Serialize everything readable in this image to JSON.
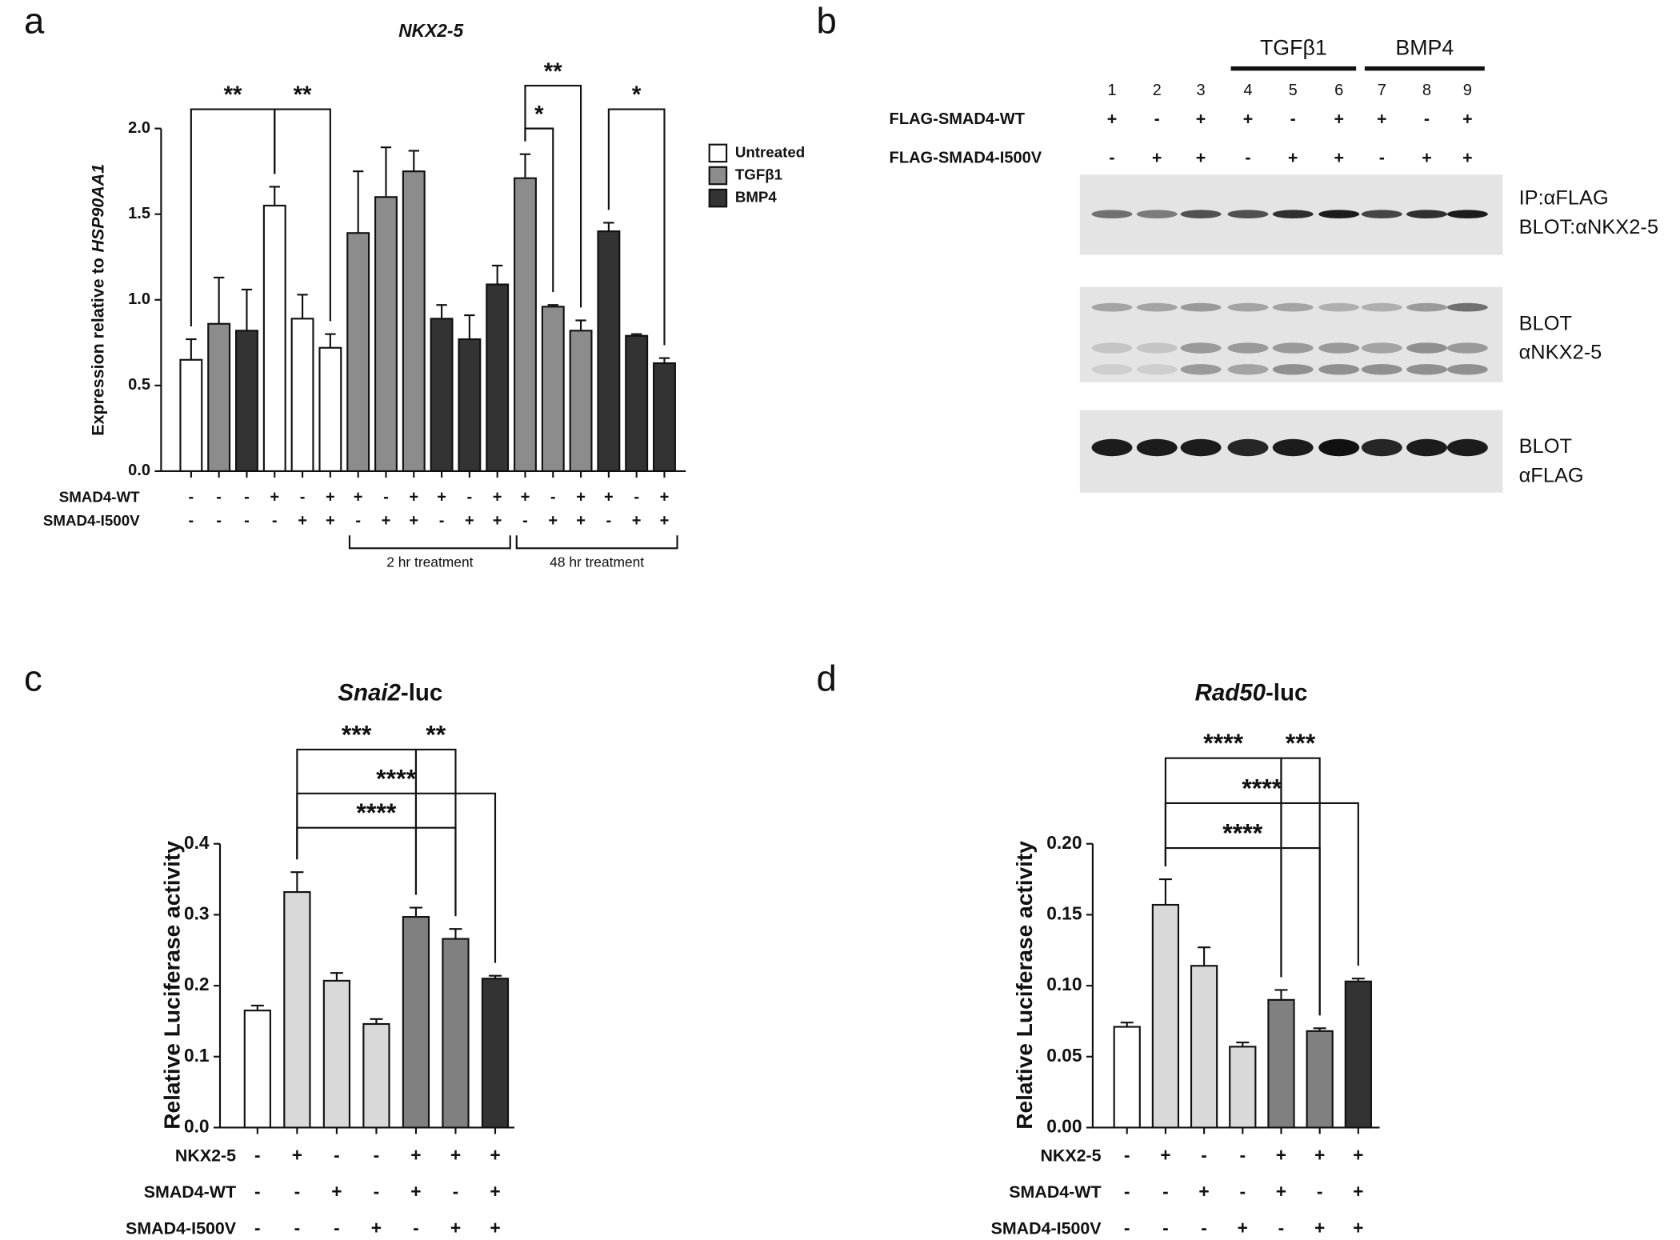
{
  "panel_labels": [
    "a",
    "b",
    "c",
    "d"
  ],
  "chart_data": [
    {
      "type": "bar",
      "title": "NKX2-5",
      "ylabel": "Expression relative to",
      "ylabel_gene": "HSP90AA1",
      "categories": [
        null,
        null,
        null,
        null,
        null,
        null,
        null,
        null,
        null,
        null,
        null,
        null,
        null,
        null,
        null,
        null,
        null,
        null
      ],
      "series": [
        {
          "name": "Untreated",
          "color": "#ffffff",
          "values": [
            0.65,
            null,
            null,
            1.55,
            0.89,
            0.72,
            null,
            null,
            null,
            null,
            null,
            null,
            null,
            null,
            null,
            null,
            null,
            null
          ],
          "errors": [
            0.12,
            null,
            null,
            0.11,
            0.14,
            0.08,
            null,
            null,
            null,
            null,
            null,
            null,
            null,
            null,
            null,
            null,
            null,
            null
          ]
        },
        {
          "name": "TGFβ1",
          "color": "#8c8c8c",
          "values": [
            null,
            0.86,
            null,
            null,
            null,
            null,
            1.39,
            1.6,
            1.75,
            null,
            null,
            null,
            1.71,
            0.96,
            0.82,
            null,
            null,
            null
          ],
          "errors": [
            null,
            0.27,
            null,
            null,
            null,
            null,
            0.36,
            0.29,
            0.12,
            null,
            null,
            null,
            0.14,
            0.01,
            0.06,
            null,
            null,
            null
          ]
        },
        {
          "name": "BMP4",
          "color": "#333333",
          "values": [
            null,
            null,
            0.82,
            null,
            null,
            null,
            null,
            null,
            null,
            0.89,
            0.77,
            1.09,
            null,
            null,
            null,
            1.4,
            0.79,
            0.63
          ],
          "errors": [
            null,
            null,
            0.24,
            null,
            null,
            null,
            null,
            null,
            null,
            0.08,
            0.14,
            0.11,
            null,
            null,
            null,
            0.05,
            0.01,
            0.03
          ]
        }
      ],
      "ylim": [
        0,
        2.1
      ],
      "yticks": [
        {
          "value": 0,
          "label": "0.0"
        },
        0.5,
        {
          "value": 1,
          "label": "1.0"
        },
        1.5,
        {
          "value": 2,
          "label": "2.0"
        }
      ],
      "conditions": [
        {
          "name": "SMAD4-WT",
          "values": [
            "-",
            "-",
            "-",
            "+",
            "-",
            "+",
            "+",
            "-",
            "+",
            "+",
            "-",
            "+",
            "+",
            "-",
            "+",
            "+",
            "-",
            "+"
          ]
        },
        {
          "name": "SMAD4-I500V",
          "values": [
            "-",
            "-",
            "-",
            "-",
            "+",
            "+",
            "-",
            "+",
            "+",
            "-",
            "+",
            "+",
            "-",
            "+",
            "+",
            "-",
            "+",
            "+"
          ]
        }
      ],
      "groups": [
        "2 hr treatment",
        "48 hr treatment"
      ],
      "significance": [
        "**",
        "**",
        "**",
        "*",
        "*"
      ],
      "legend": "right"
    },
    {
      "type": "bar",
      "title_gene": "Snai2",
      "title": "-luc",
      "ylabel": "Relative Luciferase activity",
      "categories": [
        null,
        null,
        null,
        null,
        null,
        null,
        null
      ],
      "values": [
        0.165,
        0.332,
        0.207,
        0.146,
        0.297,
        0.266,
        0.21
      ],
      "errors": [
        0.007,
        0.028,
        0.011,
        0.007,
        0.013,
        0.014,
        0.004
      ],
      "colors": [
        "#ffffff",
        "#d9d9d9",
        "#d9d9d9",
        "#d9d9d9",
        "#808080",
        "#808080",
        "#333333"
      ],
      "ylim": [
        0,
        0.4
      ],
      "yticks": [
        {
          "value": 0,
          "label": "0.0"
        },
        0.1,
        0.2,
        0.3,
        0.4
      ],
      "conditions": [
        {
          "name": "NKX2-5",
          "values": [
            "-",
            "+",
            "-",
            "-",
            "+",
            "+",
            "+"
          ]
        },
        {
          "name": "SMAD4-WT",
          "values": [
            "-",
            "-",
            "+",
            "-",
            "+",
            "-",
            "+"
          ]
        },
        {
          "name": "SMAD4-I500V",
          "values": [
            "-",
            "-",
            "-",
            "+",
            "-",
            "+",
            "+"
          ]
        }
      ],
      "significance": [
        "***",
        "**",
        "****",
        "****"
      ]
    },
    {
      "type": "bar",
      "title_gene": "Rad50",
      "title": "-luc",
      "ylabel": "Relative Luciferase activity",
      "categories": [
        null,
        null,
        null,
        null,
        null,
        null,
        null
      ],
      "values": [
        0.071,
        0.157,
        0.114,
        0.057,
        0.09,
        0.068,
        0.103
      ],
      "errors": [
        0.003,
        0.018,
        0.013,
        0.003,
        0.007,
        0.002,
        0.002
      ],
      "colors": [
        "#ffffff",
        "#d9d9d9",
        "#d9d9d9",
        "#d9d9d9",
        "#808080",
        "#808080",
        "#333333"
      ],
      "ylim": [
        0,
        0.2
      ],
      "yticks": [
        {
          "value": 0,
          "label": "0.00"
        },
        0.05,
        {
          "value": 0.1,
          "label": "0.10"
        },
        0.15,
        {
          "value": 0.2,
          "label": "0.20"
        }
      ],
      "conditions": [
        {
          "name": "NKX2-5",
          "values": [
            "-",
            "+",
            "-",
            "-",
            "+",
            "+",
            "+"
          ]
        },
        {
          "name": "SMAD4-WT",
          "values": [
            "-",
            "-",
            "+",
            "-",
            "+",
            "-",
            "+"
          ]
        },
        {
          "name": "SMAD4-I500V",
          "values": [
            "-",
            "-",
            "-",
            "+",
            "-",
            "+",
            "+"
          ]
        }
      ],
      "significance": [
        "****",
        "***",
        "****",
        "****"
      ]
    }
  ],
  "blot": {
    "lanes": [
      "1",
      "2",
      "3",
      "4",
      "5",
      "6",
      "7",
      "8",
      "9"
    ],
    "treatments": [
      "TGFβ1",
      "BMP4"
    ],
    "rows": [
      {
        "name": "FLAG-SMAD4-WT",
        "values": [
          "+",
          "-",
          "+",
          "+",
          "-",
          "+",
          "+",
          "-",
          "+"
        ]
      },
      {
        "name": "FLAG-SMAD4-I500V",
        "values": [
          "-",
          "+",
          "+",
          "-",
          "+",
          "+",
          "-",
          "+",
          "+"
        ]
      }
    ],
    "panels": [
      [
        "IP:αFLAG",
        "BLOT:αNKX2-5"
      ],
      [
        "BLOT",
        "αNKX2-5"
      ],
      [
        "BLOT",
        "αFLAG"
      ]
    ]
  }
}
